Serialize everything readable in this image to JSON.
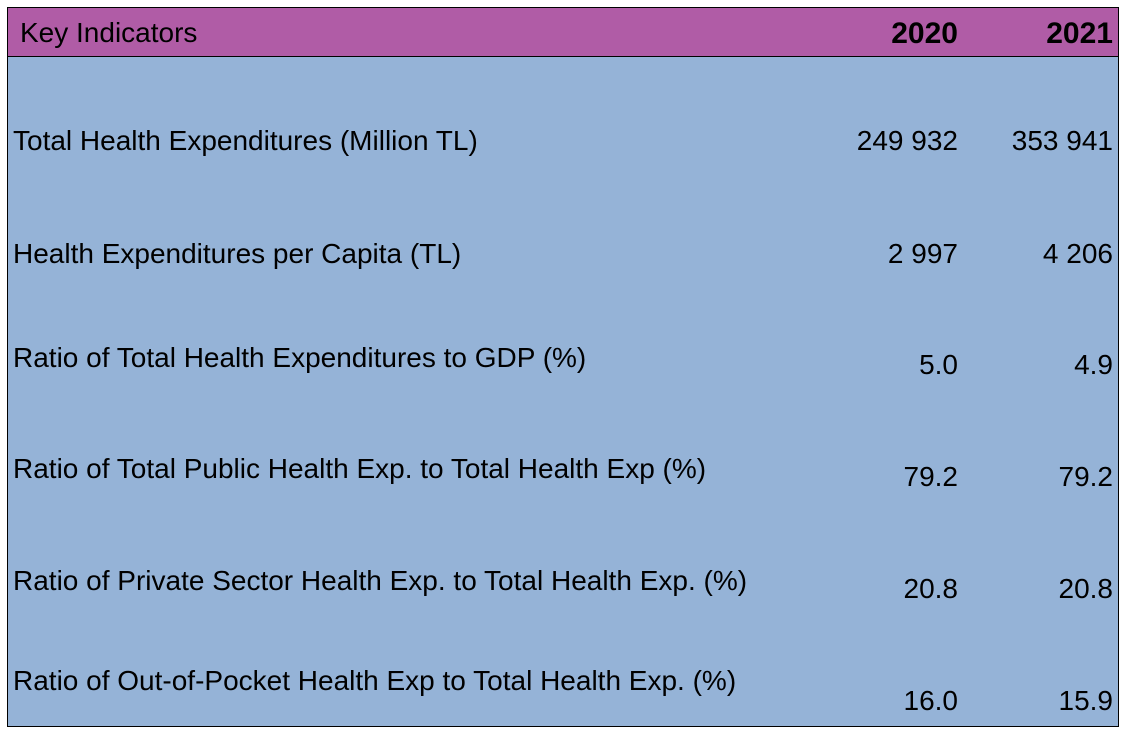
{
  "header": {
    "title": "Key Indicators",
    "columns": [
      "2020",
      "2021"
    ]
  },
  "table": {
    "rows": [
      [
        "Total Health Expenditures (Million TL)",
        "249 932",
        "353 941"
      ],
      [
        "Health Expenditures per Capita (TL)",
        "2 997",
        "4 206"
      ],
      [
        "Ratio of Total Health Expenditures to GDP (%)",
        "5.0",
        "4.9"
      ],
      [
        "Ratio of Total Public Health Exp. to Total Health Exp (%)",
        "79.2",
        "79.2"
      ],
      [
        "Ratio of Private Sector Health Exp. to Total Health Exp. (%)",
        "20.8",
        "20.8"
      ],
      [
        "Ratio of Out-of-Pocket Health Exp to Total Health Exp. (%)",
        "16.0",
        "15.9"
      ]
    ]
  }
}
